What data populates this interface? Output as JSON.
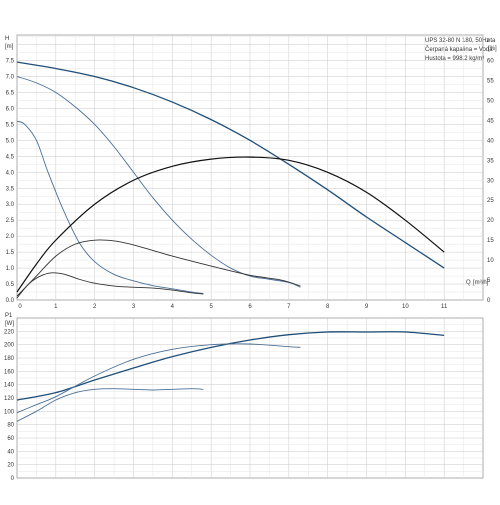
{
  "chart_data": [
    {
      "type": "line",
      "title": "UPS 32-80 N 180, 50Hz",
      "annotation_suffix": "eta",
      "info_lines": [
        "Čerpaná kapalina = Voda",
        "Hustota = 998.2 kg/m³"
      ],
      "y_axis": {
        "label": "H",
        "unit": "[m]",
        "ticks": [
          "0.0",
          "0.5",
          "1.0",
          "1.5",
          "2.0",
          "2.5",
          "3.0",
          "3.5",
          "4.0",
          "4.5",
          "5.0",
          "5.5",
          "6.0",
          "6.5",
          "7.0",
          "7.5"
        ],
        "range": [
          0,
          8.3
        ]
      },
      "y2_axis": {
        "label": "eta",
        "unit": "[%]",
        "ticks": [
          "0",
          "5",
          "10",
          "15",
          "20",
          "25",
          "30",
          "35",
          "40",
          "45",
          "50",
          "55",
          "60"
        ],
        "range": [
          0,
          66.4
        ]
      },
      "x_axis": {
        "label": "Q",
        "unit": "[m³/h]",
        "ticks": [
          "0",
          "1",
          "2",
          "3",
          "4",
          "5",
          "6",
          "7",
          "8",
          "9",
          "10",
          "11"
        ],
        "range": [
          0,
          12
        ]
      },
      "series": [
        {
          "kind": "head",
          "color": "#1f4e79",
          "axis": "H",
          "points": [
            [
              0,
              7.45
            ],
            [
              1,
              7.25
            ],
            [
              2,
              7.0
            ],
            [
              3,
              6.65
            ],
            [
              4,
              6.2
            ],
            [
              5,
              5.65
            ],
            [
              6,
              5.0
            ],
            [
              7,
              4.25
            ],
            [
              8,
              3.45
            ],
            [
              9,
              2.6
            ],
            [
              10,
              1.8
            ],
            [
              11,
              1.0
            ]
          ]
        },
        {
          "kind": "head",
          "color": "#4a6f96",
          "axis": "H",
          "points": [
            [
              0,
              7.0
            ],
            [
              0.5,
              6.8
            ],
            [
              1,
              6.5
            ],
            [
              1.5,
              6.05
            ],
            [
              2,
              5.5
            ],
            [
              2.5,
              4.8
            ],
            [
              3,
              4.0
            ],
            [
              3.5,
              3.2
            ],
            [
              4,
              2.5
            ],
            [
              4.5,
              1.9
            ],
            [
              5,
              1.4
            ],
            [
              5.5,
              1.0
            ],
            [
              6,
              0.75
            ],
            [
              6.5,
              0.65
            ],
            [
              7,
              0.55
            ],
            [
              7.3,
              0.4
            ]
          ]
        },
        {
          "kind": "head",
          "color": "#4a6f96",
          "axis": "H",
          "points": [
            [
              0,
              5.6
            ],
            [
              0.2,
              5.5
            ],
            [
              0.5,
              5.0
            ],
            [
              0.8,
              4.0
            ],
            [
              1.2,
              2.8
            ],
            [
              1.6,
              1.8
            ],
            [
              2,
              1.2
            ],
            [
              2.5,
              0.8
            ],
            [
              3,
              0.6
            ],
            [
              3.5,
              0.45
            ],
            [
              4,
              0.35
            ],
            [
              4.5,
              0.25
            ],
            [
              4.8,
              0.2
            ]
          ]
        },
        {
          "kind": "eta",
          "color": "#111111",
          "axis": "eta",
          "points": [
            [
              0,
              2
            ],
            [
              0.5,
              9
            ],
            [
              1,
              15
            ],
            [
              2,
              24
            ],
            [
              3,
              30
            ],
            [
              4,
              33.5
            ],
            [
              5,
              35.3
            ],
            [
              6,
              35.8
            ],
            [
              7,
              35.0
            ],
            [
              8,
              32.0
            ],
            [
              9,
              27
            ],
            [
              10,
              20
            ],
            [
              11,
              12
            ]
          ]
        },
        {
          "kind": "eta",
          "color": "#333333",
          "axis": "eta",
          "points": [
            [
              0,
              1
            ],
            [
              0.5,
              6
            ],
            [
              1,
              11
            ],
            [
              1.5,
              14
            ],
            [
              2,
              15
            ],
            [
              2.5,
              14.8
            ],
            [
              3,
              13.8
            ],
            [
              4,
              11.0
            ],
            [
              5,
              8.5
            ],
            [
              6,
              6.2
            ],
            [
              6.8,
              5.0
            ],
            [
              7.3,
              3.5
            ]
          ]
        },
        {
          "kind": "eta",
          "color": "#333333",
          "axis": "eta",
          "points": [
            [
              0,
              0.5
            ],
            [
              0.3,
              4
            ],
            [
              0.6,
              6
            ],
            [
              0.9,
              6.8
            ],
            [
              1.2,
              6.5
            ],
            [
              1.6,
              5.2
            ],
            [
              2,
              4.2
            ],
            [
              2.5,
              3.5
            ],
            [
              3,
              3.2
            ],
            [
              3.5,
              3.0
            ],
            [
              4,
              2.5
            ],
            [
              4.5,
              1.8
            ],
            [
              4.8,
              1.5
            ]
          ]
        }
      ]
    },
    {
      "type": "line",
      "y_axis": {
        "label": "P1",
        "unit": "[W]",
        "ticks": [
          "0",
          "20",
          "40",
          "60",
          "80",
          "100",
          "120",
          "140",
          "160",
          "180",
          "200",
          "220"
        ],
        "range": [
          0,
          240
        ]
      },
      "x_axis": {
        "range": [
          0,
          12
        ]
      },
      "series": [
        {
          "kind": "power",
          "color": "#1f4e79",
          "points": [
            [
              0,
              117
            ],
            [
              1,
              128
            ],
            [
              2,
              147
            ],
            [
              3,
              165
            ],
            [
              4,
              182
            ],
            [
              5,
              196
            ],
            [
              6,
              207
            ],
            [
              7,
              215
            ],
            [
              8,
              219
            ],
            [
              9,
              219
            ],
            [
              10,
              219
            ],
            [
              11,
              214
            ]
          ]
        },
        {
          "kind": "power",
          "color": "#4a6f96",
          "points": [
            [
              0,
              98
            ],
            [
              0.5,
              110
            ],
            [
              1,
              122
            ],
            [
              2,
              153
            ],
            [
              3,
              178
            ],
            [
              4,
              193
            ],
            [
              5,
              200
            ],
            [
              6,
              201
            ],
            [
              7,
              197
            ],
            [
              7.3,
              196
            ]
          ]
        },
        {
          "kind": "power",
          "color": "#4a6f96",
          "points": [
            [
              0,
              85
            ],
            [
              0.5,
              100
            ],
            [
              1,
              117
            ],
            [
              1.5,
              128
            ],
            [
              2,
              133
            ],
            [
              2.5,
              134
            ],
            [
              3,
              133
            ],
            [
              3.5,
              132
            ],
            [
              4,
              133
            ],
            [
              4.5,
              134
            ],
            [
              4.8,
              133
            ]
          ]
        }
      ]
    }
  ]
}
